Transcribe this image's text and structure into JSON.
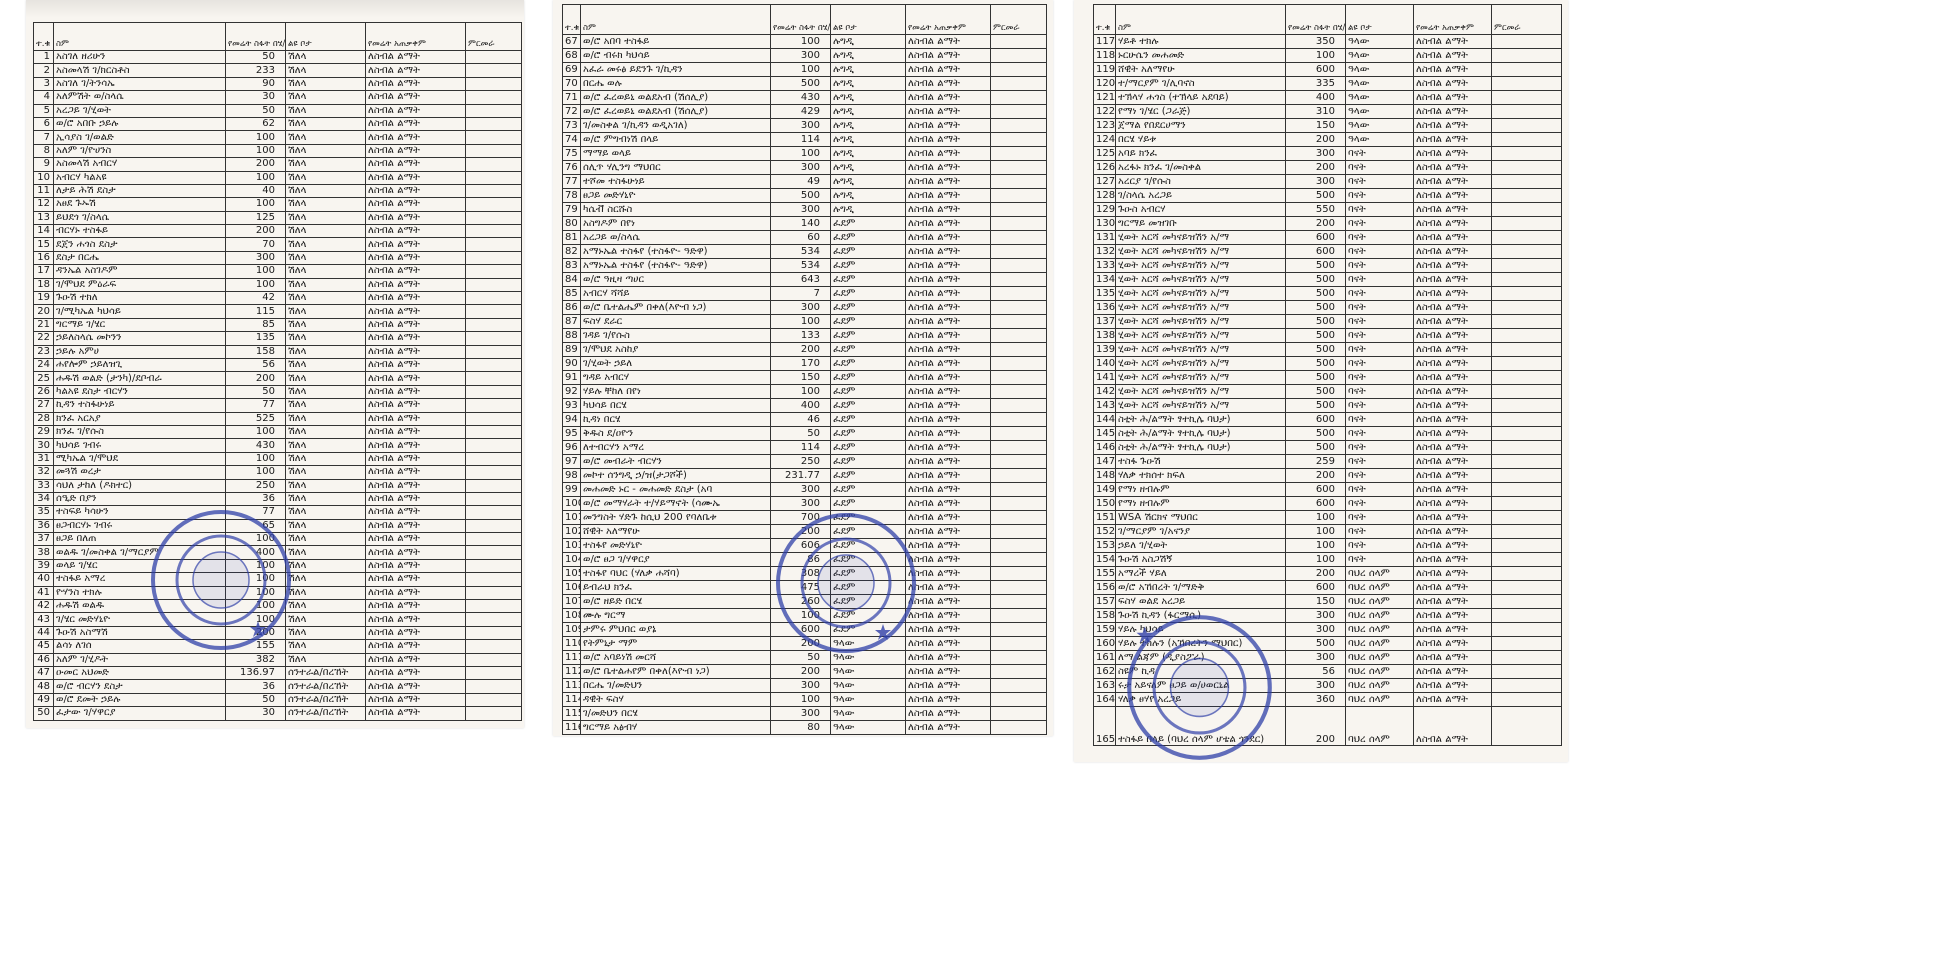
{
  "headers": {
    "no": "ተ.ቁ",
    "name": "ስም",
    "area": "የመሬት ስፋት በሄ/ር",
    "location": "ልዩ ቦታ",
    "use": "የመሬት አጠቃቀም",
    "remark": "ምርመራ"
  },
  "use_value": "ለስብል ልማት",
  "stamp_color": "#2f3fa8",
  "pages": [
    {
      "rows": [
        [
          1,
          "አስገለ ዘሪሁን",
          "50",
          "ሽለላ"
        ],
        [
          2,
          "አስመላሽ ገ/ክርስቶስ",
          "233",
          "ሽለላ"
        ],
        [
          3,
          "አስገለ ገ/ትንሳኤ",
          "90",
          "ሽለላ"
        ],
        [
          4,
          "አለምሽት ወ/ስላሴ",
          "30",
          "ሽለላ"
        ],
        [
          5,
          "አረጋይ ገ/ሂወት",
          "50",
          "ሽለላ"
        ],
        [
          6,
          "ወ/ሮ አበቡ ኃይሉ",
          "62",
          "ሽለላ"
        ],
        [
          7,
          "ኢሳያስ ገ/ወልድ",
          "100",
          "ሽለላ"
        ],
        [
          8,
          "አለም ገ/ዮሀንስ",
          "100",
          "ሽለላ"
        ],
        [
          9,
          "አስመላሽ አብርሃ",
          "200",
          "ሽለላ"
        ],
        [
          10,
          "አብርሃ ካልአዩ",
          "100",
          "ሽለላ"
        ],
        [
          11,
          "ለታይ ሕሽ ደስታ",
          "40",
          "ሽለላ"
        ],
        [
          12,
          "አፀደ ጉኡሽ",
          "100",
          "ሽለላ"
        ],
        [
          13,
          "ይህደጎ ገ/ስላሴ",
          "125",
          "ሽለላ"
        ],
        [
          14,
          "ብርሃኑ ተስፋይ",
          "200",
          "ሽለላ"
        ],
        [
          15,
          "ደጀን ሐጎስ ደስታ",
          "70",
          "ሽለላ"
        ],
        [
          16,
          "ደስታ በርሔ",
          "300",
          "ሽለላ"
        ],
        [
          17,
          "ዳንኤል አስገዶም",
          "100",
          "ሽለላ"
        ],
        [
          18,
          "ገ/ሞህደ ምዕራፍ",
          "100",
          "ሽለላ"
        ],
        [
          19,
          "ጉዑሽ ተክለ",
          "42",
          "ሽለላ"
        ],
        [
          20,
          "ገ/ሚካኤል ካህሳይ",
          "115",
          "ሽለላ"
        ],
        [
          21,
          "ግርማይ ገ/ሄር",
          "85",
          "ሽለላ"
        ],
        [
          22,
          "ኃይለስላሴ መኮንን",
          "135",
          "ሽለላ"
        ],
        [
          23,
          "ኃይሉ አምሀ",
          "158",
          "ሽለላ"
        ],
        [
          24,
          "ሐየሎም ኃይለዝጊ",
          "56",
          "ሽለላ"
        ],
        [
          25,
          "ሐዱሽ ወልድ (ታንካ)/ደቦብራ",
          "200",
          "ሽለላ"
        ],
        [
          26,
          "ካልአዩ ደስታ ብርሃን",
          "50",
          "ሽለላ"
        ],
        [
          27,
          "ኪዳን ተስፋሁነይ",
          "77",
          "ሽለላ"
        ],
        [
          28,
          "ክንፈ አርአያ",
          "525",
          "ሽለላ"
        ],
        [
          29,
          "ክንፈ ገ/የሱስ",
          "100",
          "ሽለላ"
        ],
        [
          30,
          "ካህሳይ ገብሩ",
          "430",
          "ሽለላ"
        ],
        [
          31,
          "ሚካኤል ገ/ሞህደ",
          "100",
          "ሽለላ"
        ],
        [
          32,
          "መጓሽ ወረታ",
          "100",
          "ሽለላ"
        ],
        [
          33,
          "ሳህለ ታከለ (ዶክተር)",
          "250",
          "ሽለላ"
        ],
        [
          34,
          "ሰዒድ በያን",
          "36",
          "ሽለላ"
        ],
        [
          35,
          "ተስፍይ ካሳሁን",
          "77",
          "ሽለላ"
        ],
        [
          36,
          "ፀጋብርሃኑ ገብሩ",
          "65",
          "ሽለላ"
        ],
        [
          37,
          "ፀጋይ በለጠ",
          "100",
          "ሽለላ"
        ],
        [
          38,
          "ወልዱ ገ/መስቀል ገ/ማርያም",
          "400",
          "ሽለላ"
        ],
        [
          39,
          "ወላይ ገ/ሄር",
          "100",
          "ሽለላ"
        ],
        [
          40,
          "ተስፋይ አማረ",
          "100",
          "ሽለላ"
        ],
        [
          41,
          "ዮሃንስ ተክሉ",
          "100",
          "ሽለላ"
        ],
        [
          42,
          "ሐዱሽ ወልዱ",
          "100",
          "ሽለላ"
        ],
        [
          43,
          "ገ/ሄር መድሃኒዮ",
          "100",
          "ሽለላ"
        ],
        [
          44,
          "ጉዑሽ አስማሽ",
          "200",
          "ሽለላ"
        ],
        [
          45,
          "ልሳነ ለገሰ",
          "155",
          "ሽለላ"
        ],
        [
          46,
          "አለም ገ/ሂዶት",
          "382",
          "ሽለላ"
        ],
        [
          47,
          "ዑመር አህመድ",
          "136.97",
          "ሰንተራል/በረኸት"
        ],
        [
          48,
          "ወ/ሮ ብርሃን ደስታ",
          "36",
          "ሰንተራል/በረኸት"
        ],
        [
          49,
          "ወ/ሮ ደመት ኃይሉ",
          "50",
          "ሰንተራል/በረኸት"
        ],
        [
          50,
          "ፈታው ገ/ሃዋርያ",
          "30",
          "ሰንተራል/በረኸት"
        ]
      ]
    },
    {
      "rows": [
        [
          67,
          "ወ/ሮ አበባ ተስፋይ",
          "100",
          "ሉግዲ"
        ],
        [
          68,
          "ወ/ሮ ብሩክ ካህሳይ",
          "300",
          "ሉግዲ"
        ],
        [
          69,
          "አፈራ መሩፅ ይደንጉ ገ/ኪዳን",
          "100",
          "ሉግዲ"
        ],
        [
          70,
          "በርሔ ወሉ",
          "500",
          "ሉግዲ"
        ],
        [
          71,
          "ወ/ሮ ፈረወይኒ ወልደአብ (ሽሰሊያ)",
          "430",
          "ሉግዲ"
        ],
        [
          72,
          "ወ/ሮ ፈረወይኒ ወልደአብ (ሽሰሊያ)",
          "429",
          "ሉግዲ"
        ],
        [
          73,
          "ገ/መስቀል ገ/ኪዳን ወዲአገለ)",
          "300",
          "ሉግዲ"
        ],
        [
          74,
          "ወ/ሮ ምግብነሽ በላይ",
          "114",
          "ሉግዲ"
        ],
        [
          75,
          "ማማይ ወላይ",
          "100",
          "ሉግዲ"
        ],
        [
          76,
          "ሰሊጥ ሃሊንግ ማህበር",
          "300",
          "ሉግዲ"
        ],
        [
          77,
          "ተሾመ ተስፋሁነይ",
          "49",
          "ሉግዲ"
        ],
        [
          78,
          "ፀጋይ መድሃኒዮ",
          "500",
          "ሉግዲ"
        ],
        [
          79,
          "ካሴቭ ስርሹስ",
          "300",
          "ሉግዲ"
        ],
        [
          80,
          "አስግዶም በየነ",
          "140",
          "ፈደም"
        ],
        [
          81,
          "አረጋይ ወ/ስላሴ",
          "60",
          "ፈደም"
        ],
        [
          82,
          "አማኑኤል ተስፋየ (ተስፋዮ- ዓድዋ)",
          "534",
          "ፈደም"
        ],
        [
          83,
          "አማኑኤል ተስፋየ (ተስፋዮ- ዓድዋ)",
          "534",
          "ፈደም"
        ],
        [
          84,
          "ወ/ሮ ዓዚዛ ጣሀር",
          "643",
          "ፈደም"
        ],
        [
          85,
          "አብርሃ ሻሻይ",
          "7",
          "ፈደም"
        ],
        [
          86,
          "ወ/ሮ ቤተልሔም በቀለ(እዮብ ነጋ)",
          "300",
          "ፈደም"
        ],
        [
          87,
          "ፍስሃ ደራር",
          "100",
          "ፈደም"
        ],
        [
          88,
          "ገዳይ ገ/የሱስ",
          "133",
          "ፈደም"
        ],
        [
          89,
          "ገ/ሞህደ አስከያ",
          "200",
          "ፈደም"
        ],
        [
          90,
          "ገ/ሂወት ኃይለ",
          "170",
          "ፈደም"
        ],
        [
          91,
          "ግዳይ አብርሃ",
          "150",
          "ፈደም"
        ],
        [
          92,
          "ሃይሉ ቸከለ በየነ",
          "100",
          "ፈደም"
        ],
        [
          93,
          "ካህሳይ በርሄ",
          "400",
          "ፈደም"
        ],
        [
          94,
          "ኪዳነ በርሄ",
          "46",
          "ፈደም"
        ],
        [
          95,
          "ቅዱስ ደ/ዐዮን",
          "50",
          "ፈደም"
        ],
        [
          96,
          "ለተብርሃን አማረ",
          "114",
          "ፈደም"
        ],
        [
          97,
          "ወ/ሮ መብራት ብርሃን",
          "250",
          "ፈደም"
        ],
        [
          98,
          "መኮተ ሰንግዲ ኃ/ዝ(ታጋሾች)",
          "231.77",
          "ፈደም"
        ],
        [
          99,
          "መሐመድ ኑር - መሐመድ ደስታ (አባ",
          "300",
          "ፈደም"
        ],
        [
          100,
          "ወ/ሮ መማሃራት ተ/ሃይማኖት (ሳሙኤ",
          "300",
          "ፈደም"
        ],
        [
          101,
          "መንግስት ሃድጉ ከሲህ 200 የባለቤቱ",
          "700",
          "ፈደም"
        ],
        [
          102,
          "ሸዊት አለማየሁ",
          "200",
          "ፈደም"
        ],
        [
          103,
          "ተስፋየ መድሃኒዮ",
          "606",
          "ፈደም"
        ],
        [
          104,
          "ወ/ሮ ፀጋ ገ/ሃዋርያ",
          "86",
          "ፈደም"
        ],
        [
          105,
          "ተስፋየ ባህር (ሃለቃ ሐሻባ)",
          "308",
          "ፈደም"
        ],
        [
          106,
          "ይብራህ ክንፈ",
          "475",
          "ፈደም"
        ],
        [
          107,
          "ወ/ሮ ዘይድ በርሄ",
          "260",
          "ፈደም"
        ],
        [
          108,
          "ሙሉ ግርማ",
          "100",
          "ፈደም"
        ],
        [
          109,
          "ታምሩ ምህበር ወያኔ",
          "600",
          "ፈደም"
        ],
        [
          110,
          "የትምኒታ ማም",
          "200",
          "ዓላው"
        ],
        [
          111,
          "ወ/ሮ አባይነሽ መርሻ",
          "50",
          "ዓላው"
        ],
        [
          112,
          "ወ/ሮ ቤተልሐየም በቀለ(እዮብ ነጋ)",
          "200",
          "ዓላው"
        ],
        [
          113,
          "በርሔ ገ/መድህን",
          "300",
          "ዓላው"
        ],
        [
          114,
          "ዳዊት ፍስሃ",
          "100",
          "ዓላው"
        ],
        [
          115,
          "ገ/መድህን በርሄ",
          "300",
          "ዓላው"
        ],
        [
          116,
          "ግርማይ አፅብሃ",
          "80",
          "ዓላው"
        ]
      ]
    },
    {
      "rows": [
        [
          117,
          "ሃይቶ ተክሉ",
          "350",
          "ዓላው"
        ],
        [
          118,
          "ኑርሁሴን መሐመድ",
          "100",
          "ዓላው"
        ],
        [
          119,
          "ሸዊት አለማየሁ",
          "600",
          "ዓላው"
        ],
        [
          120,
          "ተ/ማርያም ገ/ሊባኖስ",
          "335",
          "ዓላው"
        ],
        [
          121,
          "ተኽላሃ ሐጎስ (ተኽላይ አደባይ)",
          "400",
          "ዓላው"
        ],
        [
          122,
          "የማነ ገ/ሄር (ጋራጅ)",
          "310",
          "ዓላው"
        ],
        [
          123,
          "ጀማል የበደርሀማን",
          "150",
          "ዓላው"
        ],
        [
          124,
          "በርሄ ሃይቱ",
          "200",
          "ዓላው"
        ],
        [
          125,
          "አባይ ክንፈ",
          "300",
          "ባናት"
        ],
        [
          126,
          "አረፋኑ ክንፈ ገ/መስቀል",
          "200",
          "ባናት"
        ],
        [
          127,
          "አረርያ ገ/የሱስ",
          "300",
          "ባናት"
        ],
        [
          128,
          "ገ/ስላሴ አረጋይ",
          "500",
          "ባናት"
        ],
        [
          129,
          "ጉዑስ አብርሃ",
          "550",
          "ባናት"
        ],
        [
          130,
          "ግርማይ መዝገቡ",
          "200",
          "ባናት"
        ],
        [
          131,
          "ሂወት አርሻ መካናይዝሽን አ/ማ",
          "600",
          "ባናት"
        ],
        [
          132,
          "ሂወት አርሻ መካናይዝሽን አ/ማ",
          "600",
          "ባናት"
        ],
        [
          133,
          "ሂወት አርሻ መካናይዝሽን አ/ማ",
          "500",
          "ባናት"
        ],
        [
          134,
          "ሂወት አርሻ መካናይዝሽን አ/ማ",
          "500",
          "ባናት"
        ],
        [
          135,
          "ሂወት አርሻ መካናይዝሽን አ/ማ",
          "500",
          "ባናት"
        ],
        [
          136,
          "ሂወት አርሻ መካናይዝሽን አ/ማ",
          "500",
          "ባናት"
        ],
        [
          137,
          "ሂወት አርሻ መካናይዝሽን አ/ማ",
          "500",
          "ባናት"
        ],
        [
          138,
          "ሂወት አርሻ መካናይዝሽን አ/ማ",
          "500",
          "ባናት"
        ],
        [
          139,
          "ሂወት አርሻ መካናይዝሽን አ/ማ",
          "500",
          "ባናት"
        ],
        [
          140,
          "ሂወት አርሻ መካናይዝሽን አ/ማ",
          "500",
          "ባናት"
        ],
        [
          141,
          "ሂወት አርሻ መካናይዝሽን አ/ማ",
          "500",
          "ባናት"
        ],
        [
          142,
          "ሂወት አርሻ መካናይዝሽን አ/ማ",
          "500",
          "ባናት"
        ],
        [
          143,
          "ሂወት አርሻ መካናይዝሽን አ/ማ",
          "500",
          "ባናት"
        ],
        [
          144,
          "ስቲት ሕ/ልማት ፃተኪሌ ባህታ)",
          "600",
          "ባናት"
        ],
        [
          145,
          "ስቲት ሕ/ልማት ፃተኪሌ ባህታ)",
          "500",
          "ባናት"
        ],
        [
          146,
          "ስቲት ሕ/ልማት ፃተኪሌ ባህታ)",
          "500",
          "ባናት"
        ],
        [
          147,
          "ተስፋ ጉዑሽ",
          "259",
          "ባናት"
        ],
        [
          148,
          "ሃለቃ ተክሰተ ክፍለ",
          "200",
          "ባናት"
        ],
        [
          149,
          "የማነ ዘብሉም",
          "600",
          "ባናት"
        ],
        [
          150,
          "የማነ ዘብሉም",
          "600",
          "ባናት"
        ],
        [
          151,
          "WSA ሽርክና ማህበር",
          "100",
          "ባናት"
        ],
        [
          152,
          "ገ/ማርያም ገ/አናንያ",
          "100",
          "ባናት"
        ],
        [
          153,
          "ኃይለ ገ/ሂወት",
          "100",
          "ባናት"
        ],
        [
          154,
          "ጉዑሽ አስጋሽኝ",
          "100",
          "ባናት"
        ],
        [
          155,
          "አማረች ሃይለ",
          "200",
          "ባህረ ሰላም"
        ],
        [
          156,
          "ወ/ሮ አኸበረት ገ/ማድቅ",
          "600",
          "ባህረ ሰላም"
        ],
        [
          157,
          "ፍስሃ ወልደ አረጋይ",
          "150",
          "ባህረ ሰላም"
        ],
        [
          158,
          "ጉዑሽ ኪዳን (ፋርማሲ)",
          "300",
          "ባህረ ሰላም"
        ],
        [
          159,
          "ሃይሉ ካህሳይ",
          "300",
          "ባህረ ሰላም"
        ],
        [
          160,
          "ሃይሉ ተክሉን (አኸበረትን ማህበር)",
          "500",
          "ባህረ ሰላም"
        ],
        [
          161,
          "ለማ ልጃም (ዲያስፖራ)",
          "300",
          "ባህረ ሰላም"
        ],
        [
          162,
          "ስዩም ኪዳ",
          "56",
          "ባህረ ሰላም"
        ],
        [
          163,
          "ሩታ አይናለም ፀጋይ ወ/ሀወርኒል",
          "300",
          "ባህረ ሰላም"
        ],
        [
          164,
          "ሃለቃ ፀሃየ አረጋይ",
          "360",
          "ባህረ ሰላም"
        ],
        [
          165,
          "ተስፋይ በላይ (ባህረ ሰላም ሆቴል ጎንደር)",
          "200",
          "ባህረ ሰላም"
        ]
      ]
    }
  ]
}
